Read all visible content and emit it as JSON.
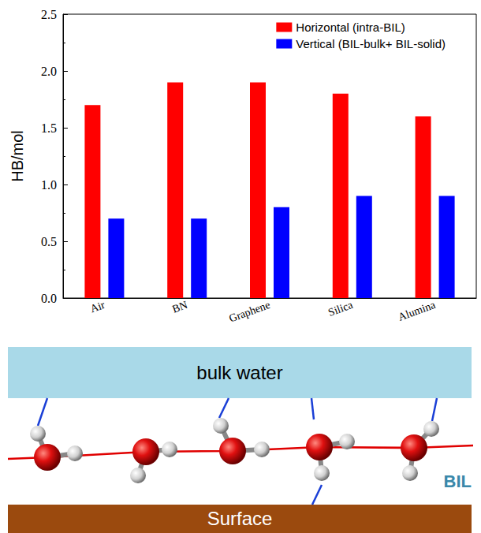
{
  "chart_data": {
    "type": "bar",
    "categories": [
      "Air",
      "BN",
      "Graphene",
      "Silica",
      "Alumina"
    ],
    "series": [
      {
        "name": "Horizontal (intra-BIL)",
        "color": "#ff0000",
        "values": [
          1.7,
          1.9,
          1.9,
          1.8,
          1.6
        ]
      },
      {
        "name": "Vertical (BIL-bulk+ BIL-solid)",
        "color": "#0000ff",
        "values": [
          0.7,
          0.7,
          0.8,
          0.9,
          0.9
        ]
      }
    ],
    "y_label": "HB/mol",
    "ylim": [
      0,
      2.5
    ],
    "yticks": [
      {
        "value": 0,
        "label": "0.0"
      },
      0.5,
      {
        "value": 1,
        "label": "1.0"
      },
      1.5,
      {
        "value": 2,
        "label": "2.0"
      },
      2.5
    ],
    "legend": "top-right",
    "grid": false
  },
  "diagram": {
    "top_label": "bulk water",
    "bottom_label": "Surface",
    "side_label": "BIL"
  }
}
